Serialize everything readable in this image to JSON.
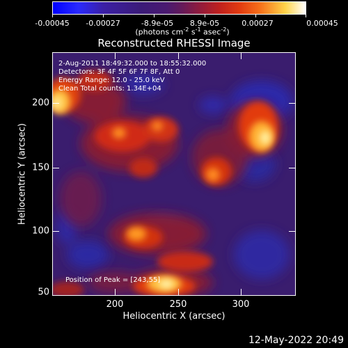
{
  "colorbar": {
    "tick_labels": [
      "-0.00045",
      "-0.00027",
      "-8.9e-05",
      "8.9e-05",
      "0.00027",
      "0.00045"
    ],
    "units_prefix": "(photons cm",
    "units_exp1": "-2",
    "units_mid1": " s",
    "units_exp2": "-1",
    "units_mid2": " asec",
    "units_exp3": "-2",
    "units_suffix": ")"
  },
  "title": "Reconstructed RHESSI Image",
  "info": {
    "time_range": " 2-Aug-2011 18:49:32.000 to 18:55:32.000",
    "detectors": "Detectors: 3F 4F 5F 6F 7F 8F, Att 0",
    "energy": "Energy Range: 12.0 - 25.0 keV",
    "clean": "Clean     Total counts: 1.34E+04",
    "peak": "Position of Peak = [243,55]"
  },
  "axes": {
    "xlabel": "Heliocentric X (arcsec)",
    "ylabel": "Heliocentric Y (arcsec)",
    "xticks": [
      "200",
      "250",
      "300"
    ],
    "yticks": [
      "200",
      "150",
      "100",
      "50"
    ]
  },
  "datestamp": "12-May-2022 20:49",
  "colors": {
    "background": "#000000",
    "foreground": "#ffffff",
    "colormap_low": "#0000ff",
    "colormap_mid": "#4a1a70",
    "colormap_high": "#ffffff"
  }
}
